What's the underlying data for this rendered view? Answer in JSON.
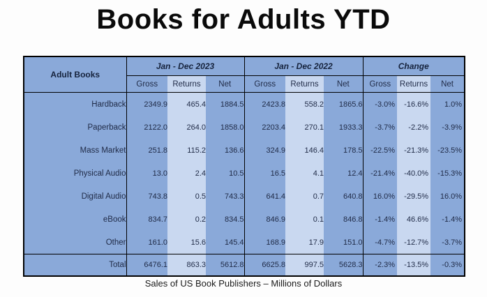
{
  "title": "Books for Adults YTD",
  "caption": "Sales of US Book Publishers – Millions of Dollars",
  "chart_data": {
    "type": "table",
    "title": "Books for Adults YTD",
    "corner_label": "Adult Books",
    "column_groups": [
      "Jan - Dec 2023",
      "Jan - Dec 2022",
      "Change"
    ],
    "sub_columns": [
      "Gross",
      "Returns",
      "Net"
    ],
    "row_labels": [
      "Hardback",
      "Paperback",
      "Mass Market",
      "Physical Audio",
      "Digital Audio",
      "eBook",
      "Other"
    ],
    "rows": [
      [
        "2349.9",
        "465.4",
        "1884.5",
        "2423.8",
        "558.2",
        "1865.6",
        "-3.0%",
        "-16.6%",
        "1.0%"
      ],
      [
        "2122.0",
        "264.0",
        "1858.0",
        "2203.4",
        "270.1",
        "1933.3",
        "-3.7%",
        "-2.2%",
        "-3.9%"
      ],
      [
        "251.8",
        "115.2",
        "136.6",
        "324.9",
        "146.4",
        "178.5",
        "-22.5%",
        "-21.3%",
        "-23.5%"
      ],
      [
        "13.0",
        "2.4",
        "10.5",
        "16.5",
        "4.1",
        "12.4",
        "-21.4%",
        "-40.0%",
        "-15.3%"
      ],
      [
        "743.8",
        "0.5",
        "743.3",
        "641.4",
        "0.7",
        "640.8",
        "16.0%",
        "-29.5%",
        "16.0%"
      ],
      [
        "834.7",
        "0.2",
        "834.5",
        "846.9",
        "0.1",
        "846.8",
        "-1.4%",
        "46.6%",
        "-1.4%"
      ],
      [
        "161.0",
        "15.6",
        "145.4",
        "168.9",
        "17.9",
        "151.0",
        "-4.7%",
        "-12.7%",
        "-3.7%"
      ]
    ],
    "total": {
      "label": "Total",
      "values": [
        "6476.1",
        "863.3",
        "5612.8",
        "6625.8",
        "997.5",
        "5628.3",
        "-2.3%",
        "-13.5%",
        "-0.3%"
      ]
    },
    "caption": "Sales of US Book Publishers – Millions of Dollars",
    "units": "Millions of Dollars"
  },
  "colors": {
    "cell_medium": "#8AA9D9",
    "cell_light": "#C9D8F0",
    "border": "#000000",
    "text": "#1F2A46"
  }
}
